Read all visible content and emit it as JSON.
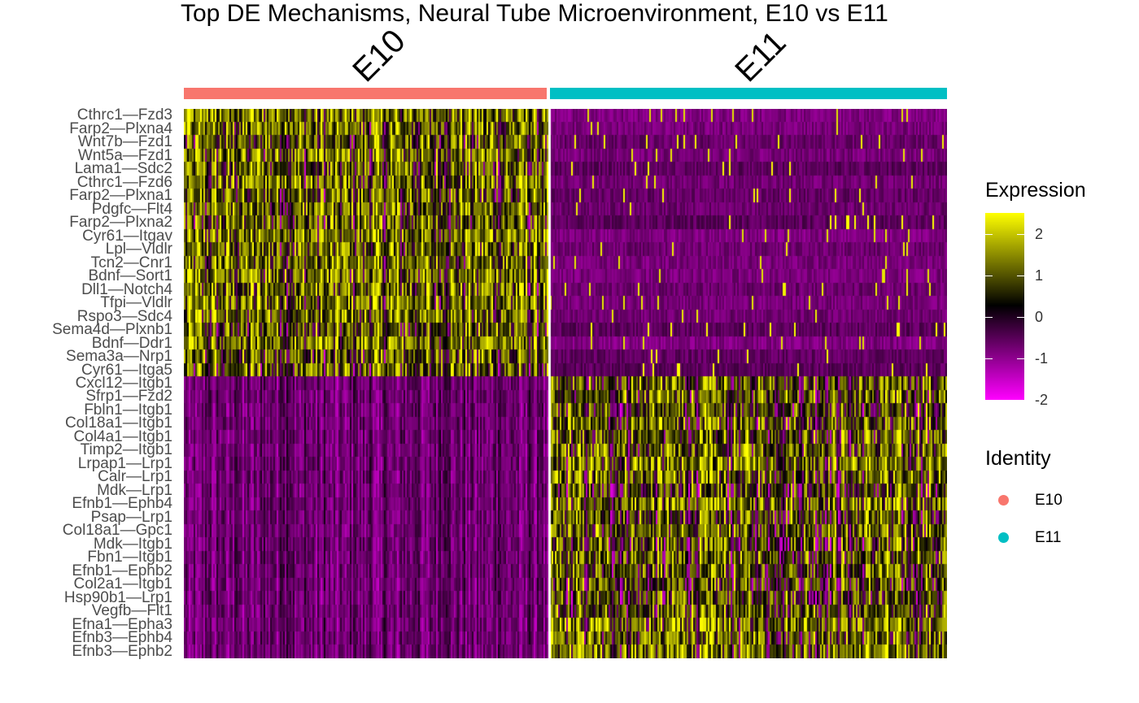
{
  "chart_data": {
    "type": "heatmap",
    "title": "Top DE Mechanisms, Neural Tube Microenvironment, E10 vs E11",
    "groups": [
      {
        "name": "E10",
        "color": "#F8766D"
      },
      {
        "name": "E11",
        "color": "#00BFC4"
      }
    ],
    "rows": [
      "Cthrc1—Fzd3",
      "Farp2—Plxna4",
      "Wnt7b—Fzd1",
      "Wnt5a—Fzd1",
      "Lama1—Sdc2",
      "Cthrc1—Fzd6",
      "Farp2—Plxna1",
      "Pdgfc—Flt4",
      "Farp2—Plxna2",
      "Cyr61—Itgav",
      "Lpl—Vldlr",
      "Tcn2—Cnr1",
      "Bdnf—Sort1",
      "Dll1—Notch4",
      "Tfpi—Vldlr",
      "Rspo3—Sdc4",
      "Sema4d—Plxnb1",
      "Bdnf—Ddr1",
      "Sema3a—Nrp1",
      "Cyr61—Itga5",
      "Cxcl12—Itgb1",
      "Sfrp1—Fzd2",
      "Fbln1—Itgb1",
      "Col18a1—Itgb1",
      "Col4a1—Itgb1",
      "Timp2—Itgb1",
      "Lrpap1—Lrp1",
      "Calr—Lrp1",
      "Mdk—Lrp1",
      "Efnb1—Ephb4",
      "Psap—Lrp1",
      "Col18a1—Gpc1",
      "Mdk—Itgb1",
      "Fbn1—Itgb1",
      "Efnb1—Ephb2",
      "Col2a1—Itgb1",
      "Hsp90b1—Lrp1",
      "Vegfb—Flt1",
      "Efna1—Epha3",
      "Efnb3—Ephb4",
      "Efnb3—Ephb2"
    ],
    "row_block_high": {
      "E10": "Cthrc1—Fzd3 … Cyr61—Itga5",
      "E11": "Cxcl12—Itgb1 … Efnb3—Ephb2"
    },
    "value_range": [
      -2,
      2.5
    ],
    "colorscale": [
      "#FF00FF",
      "#000000",
      "#FFFF00"
    ],
    "legend_expression": {
      "title": "Expression",
      "ticks": [
        "2",
        "1",
        "0",
        "-1",
        "-2"
      ],
      "tick_values": [
        2,
        1,
        0,
        -1,
        -2
      ]
    },
    "legend_identity": {
      "title": "Identity",
      "items": [
        {
          "label": "E10",
          "color": "#F8766D"
        },
        {
          "label": "E11",
          "color": "#00BFC4"
        }
      ]
    }
  }
}
